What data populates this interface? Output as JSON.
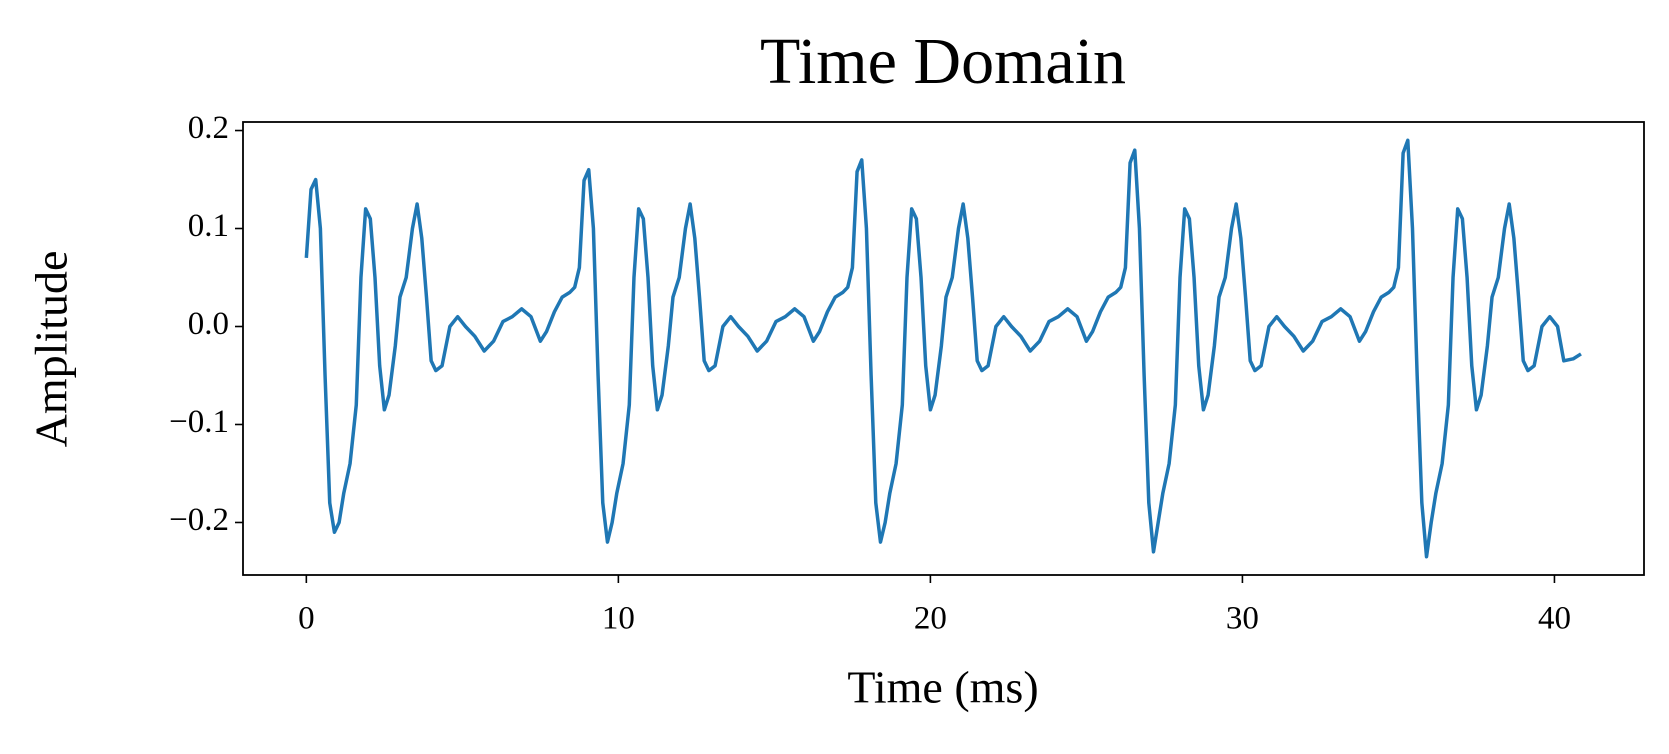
{
  "chart_data": {
    "type": "line",
    "title": "Time Domain",
    "x_label": "Time (ms)",
    "y_label": "Amplitude",
    "xlim": [
      -2.03,
      42.87
    ],
    "ylim": [
      -0.2536,
      0.2087
    ],
    "xticks": [
      0,
      10,
      20,
      30,
      40
    ],
    "yticks": [
      {
        "value": -0.2,
        "label": "−0.2"
      },
      {
        "value": -0.1,
        "label": "−0.1"
      },
      {
        "value": 0,
        "label": "0.0"
      },
      0.1,
      0.2
    ],
    "grid": false,
    "series": [
      {
        "color": "#1f77b4",
        "x": [
          0,
          0.15,
          0.3,
          0.45,
          0.6,
          0.75,
          0.9,
          1.05,
          1.2,
          1.4,
          1.6,
          1.75,
          1.9,
          2.05,
          2.2,
          2.35,
          2.5,
          2.65,
          2.85,
          3.0,
          3.2,
          3.4,
          3.55,
          3.7,
          3.85,
          4.0,
          4.15,
          4.35,
          4.6,
          4.85,
          5.1,
          5.4,
          5.7,
          6.0,
          6.3,
          6.6,
          6.9,
          7.2,
          7.5,
          7.7,
          7.95,
          8.2,
          8.45,
          8.6,
          8.75,
          8.9,
          9.05,
          9.2,
          9.35,
          9.5,
          9.65,
          9.8,
          9.95,
          10.15,
          10.35,
          10.5,
          10.65,
          10.8,
          10.95,
          11.1,
          11.25,
          11.4,
          11.6,
          11.75,
          11.95,
          12.15,
          12.3,
          12.45,
          12.6,
          12.75,
          12.9,
          13.1,
          13.35,
          13.6,
          13.85,
          14.15,
          14.45,
          14.75,
          15.05,
          15.35,
          15.65,
          15.95,
          16.25,
          16.45,
          16.7,
          16.95,
          17.2,
          17.35,
          17.5,
          17.65,
          17.8,
          17.95,
          18.1,
          18.25,
          18.4,
          18.55,
          18.7,
          18.9,
          19.1,
          19.25,
          19.4,
          19.55,
          19.7,
          19.85,
          20.0,
          20.15,
          20.35,
          20.5,
          20.7,
          20.9,
          21.05,
          21.2,
          21.35,
          21.5,
          21.65,
          21.85,
          22.1,
          22.35,
          22.6,
          22.9,
          23.2,
          23.5,
          23.8,
          24.1,
          24.4,
          24.7,
          25.0,
          25.2,
          25.45,
          25.7,
          25.95,
          26.1,
          26.25,
          26.4,
          26.55,
          26.7,
          26.85,
          27.0,
          27.15,
          27.3,
          27.45,
          27.65,
          27.85,
          28.0,
          28.15,
          28.3,
          28.45,
          28.6,
          28.75,
          28.9,
          29.1,
          29.25,
          29.45,
          29.65,
          29.8,
          29.95,
          30.1,
          30.25,
          30.4,
          30.6,
          30.85,
          31.1,
          31.35,
          31.65,
          31.95,
          32.25,
          32.55,
          32.85,
          33.15,
          33.45,
          33.75,
          33.95,
          34.2,
          34.45,
          34.7,
          34.85,
          35.0,
          35.15,
          35.3,
          35.45,
          35.6,
          35.75,
          35.9,
          36.05,
          36.2,
          36.4,
          36.6,
          36.75,
          36.9,
          37.05,
          37.2,
          37.35,
          37.5,
          37.65,
          37.85,
          38.0,
          38.2,
          38.4,
          38.55,
          38.7,
          38.85,
          39.0,
          39.15,
          39.35,
          39.6,
          39.85,
          40.1,
          40.3,
          40.6,
          40.85
        ],
        "values": [
          0.07,
          0.14,
          0.15,
          0.1,
          -0.05,
          -0.18,
          -0.21,
          -0.2,
          -0.17,
          -0.14,
          -0.08,
          0.05,
          0.12,
          0.11,
          0.05,
          -0.04,
          -0.085,
          -0.07,
          -0.02,
          0.03,
          0.05,
          0.1,
          0.125,
          0.09,
          0.03,
          -0.035,
          -0.045,
          -0.04,
          0.0,
          0.01,
          0.0,
          -0.01,
          -0.025,
          -0.015,
          0.005,
          0.01,
          0.018,
          0.01,
          -0.015,
          -0.005,
          0.015,
          0.03,
          0.035,
          0.04,
          0.06,
          0.149,
          0.16,
          0.1,
          -0.05,
          -0.18,
          -0.22,
          -0.2,
          -0.17,
          -0.14,
          -0.08,
          0.05,
          0.12,
          0.11,
          0.05,
          -0.04,
          -0.085,
          -0.07,
          -0.02,
          0.03,
          0.05,
          0.1,
          0.125,
          0.09,
          0.03,
          -0.035,
          -0.045,
          -0.04,
          0.0,
          0.01,
          0.0,
          -0.01,
          -0.025,
          -0.015,
          0.005,
          0.01,
          0.018,
          0.01,
          -0.015,
          -0.005,
          0.015,
          0.03,
          0.035,
          0.04,
          0.06,
          0.158,
          0.17,
          0.1,
          -0.05,
          -0.18,
          -0.22,
          -0.2,
          -0.17,
          -0.14,
          -0.08,
          0.05,
          0.12,
          0.11,
          0.05,
          -0.04,
          -0.085,
          -0.07,
          -0.02,
          0.03,
          0.05,
          0.1,
          0.125,
          0.09,
          0.03,
          -0.035,
          -0.045,
          -0.04,
          0.0,
          0.01,
          0.0,
          -0.01,
          -0.025,
          -0.015,
          0.005,
          0.01,
          0.018,
          0.01,
          -0.015,
          -0.005,
          0.015,
          0.03,
          0.035,
          0.04,
          0.06,
          0.167,
          0.18,
          0.1,
          -0.05,
          -0.18,
          -0.23,
          -0.2,
          -0.17,
          -0.14,
          -0.08,
          0.05,
          0.12,
          0.11,
          0.05,
          -0.04,
          -0.085,
          -0.07,
          -0.02,
          0.03,
          0.05,
          0.1,
          0.125,
          0.09,
          0.03,
          -0.035,
          -0.045,
          -0.04,
          0.0,
          0.01,
          0.0,
          -0.01,
          -0.025,
          -0.015,
          0.005,
          0.01,
          0.018,
          0.01,
          -0.015,
          -0.005,
          0.015,
          0.03,
          0.035,
          0.04,
          0.06,
          0.177,
          0.19,
          0.1,
          -0.05,
          -0.18,
          -0.235,
          -0.2,
          -0.17,
          -0.14,
          -0.08,
          0.05,
          0.12,
          0.11,
          0.05,
          -0.04,
          -0.085,
          -0.07,
          -0.02,
          0.03,
          0.05,
          0.1,
          0.125,
          0.09,
          0.03,
          -0.035,
          -0.045,
          -0.04,
          0.0,
          0.01,
          0.0,
          -0.035,
          -0.033,
          -0.028
        ]
      }
    ]
  }
}
